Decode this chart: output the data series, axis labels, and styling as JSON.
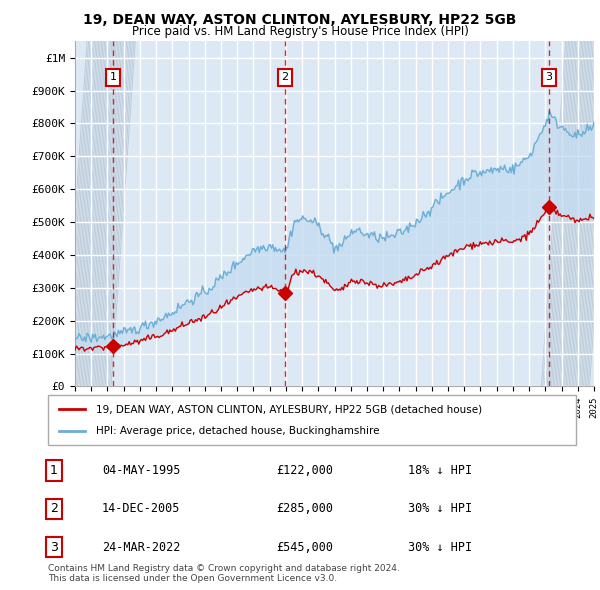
{
  "title1": "19, DEAN WAY, ASTON CLINTON, AYLESBURY, HP22 5GB",
  "title2": "Price paid vs. HM Land Registry's House Price Index (HPI)",
  "ylabel_values": [
    "£0",
    "£100K",
    "£200K",
    "£300K",
    "£400K",
    "£500K",
    "£600K",
    "£700K",
    "£800K",
    "£900K",
    "£1M"
  ],
  "ytick_values": [
    0,
    100000,
    200000,
    300000,
    400000,
    500000,
    600000,
    700000,
    800000,
    900000,
    1000000
  ],
  "ylim": [
    0,
    1050000
  ],
  "legend_label_red": "19, DEAN WAY, ASTON CLINTON, AYLESBURY, HP22 5GB (detached house)",
  "legend_label_blue": "HPI: Average price, detached house, Buckinghamshire",
  "sale_points": [
    {
      "date": "04-MAY-1995",
      "year": 1995.35,
      "price": 122000,
      "label": "1"
    },
    {
      "date": "14-DEC-2005",
      "year": 2005.95,
      "price": 285000,
      "label": "2"
    },
    {
      "date": "24-MAR-2022",
      "year": 2022.22,
      "price": 545000,
      "label": "3"
    }
  ],
  "table_rows": [
    {
      "num": "1",
      "date": "04-MAY-1995",
      "price": "£122,000",
      "pct": "18% ↓ HPI"
    },
    {
      "num": "2",
      "date": "14-DEC-2005",
      "price": "£285,000",
      "pct": "30% ↓ HPI"
    },
    {
      "num": "3",
      "date": "24-MAR-2022",
      "price": "£545,000",
      "pct": "30% ↓ HPI"
    }
  ],
  "footer": "Contains HM Land Registry data © Crown copyright and database right 2024.\nThis data is licensed under the Open Government Licence v3.0.",
  "hpi_color": "#6baed6",
  "hpi_fill_color": "#c6dbef",
  "red_color": "#cc0000",
  "sale_marker_color": "#cc0000",
  "label_box_color": "#cc0000",
  "grid_color": "#cccccc",
  "background_color": "#dce9f5",
  "hatch_bg": "#d0d8e0"
}
